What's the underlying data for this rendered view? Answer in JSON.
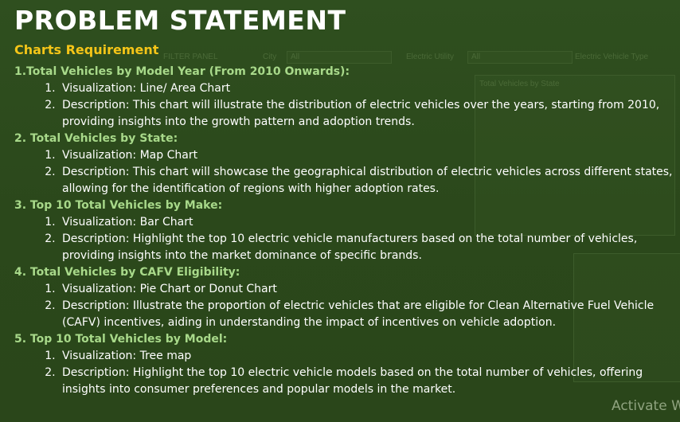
{
  "title": "PROBLEM STATEMENT",
  "subtitle": "Charts Requirement",
  "sections": [
    {
      "heading": "1.Total Vehicles by Model Year (From 2010 Onwards):",
      "visualization": "Visualization: Line/ Area Chart",
      "description": "Description: This chart will illustrate the distribution of electric vehicles over the years, starting from 2010, providing insights into the growth pattern and adoption trends."
    },
    {
      "heading": "2. Total Vehicles by State:",
      "visualization": "Visualization: Map Chart",
      "description": "Description: This chart will showcase the geographical distribution of electric vehicles across different states, allowing for the identification of regions with higher adoption rates."
    },
    {
      "heading": "3. Top 10 Total Vehicles by Make:",
      "visualization": "Visualization: Bar Chart",
      "description": "Description: Highlight the top 10 electric vehicle manufacturers based on the total number of vehicles, providing insights into the market dominance of specific brands."
    },
    {
      "heading": "4. Total Vehicles by CAFV Eligibility:",
      "visualization": "Visualization: Pie Chart or Donut Chart",
      "description": "Description: Illustrate the proportion of electric vehicles that are eligible for Clean Alternative Fuel Vehicle (CAFV) incentives, aiding in understanding the impact of incentives on vehicle adoption."
    },
    {
      "heading": "5. Top 10 Total Vehicles by Model:",
      "visualization": "Visualization: Tree map",
      "description": "Description: Highlight the top 10 electric vehicle models based on the total number of vehicles, offering insights into consumer preferences and popular models in the market."
    }
  ],
  "background": {
    "filter_panel": "FILTER PANEL",
    "city": "City",
    "electric_utility": "Electric Utility",
    "vehicle_type": "Electric Vehicle Type",
    "all": "All",
    "state_chart": "Total Vehicles by State"
  },
  "watermark": "Activate W",
  "colors": {
    "background": "#2c4a1c",
    "title": "#ffffff",
    "subtitle": "#f5c518",
    "heading": "#a8d98a",
    "body_text": "#ffffff"
  }
}
